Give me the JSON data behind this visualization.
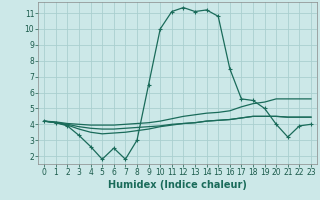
{
  "xlabel": "Humidex (Indice chaleur)",
  "background_color": "#cce8e8",
  "grid_color": "#aacfcf",
  "line_color": "#1a6b5a",
  "xlim": [
    -0.5,
    23.5
  ],
  "ylim": [
    1.5,
    11.7
  ],
  "xticks": [
    0,
    1,
    2,
    3,
    4,
    5,
    6,
    7,
    8,
    9,
    10,
    11,
    12,
    13,
    14,
    15,
    16,
    17,
    18,
    19,
    20,
    21,
    22,
    23
  ],
  "yticks": [
    2,
    3,
    4,
    5,
    6,
    7,
    8,
    9,
    10,
    11
  ],
  "series1_x": [
    0,
    1,
    2,
    3,
    4,
    5,
    6,
    7,
    8,
    9,
    10,
    11,
    12,
    13,
    14,
    15,
    16,
    17,
    18,
    19,
    20,
    21,
    22,
    23
  ],
  "series1_y": [
    4.2,
    4.1,
    3.9,
    3.3,
    2.6,
    1.8,
    2.5,
    1.8,
    3.0,
    6.5,
    10.0,
    11.1,
    11.35,
    11.1,
    11.2,
    10.8,
    7.5,
    5.6,
    5.5,
    5.0,
    4.0,
    3.2,
    3.9,
    4.0
  ],
  "series2_x": [
    0,
    1,
    2,
    3,
    4,
    5,
    6,
    7,
    8,
    9,
    10,
    11,
    12,
    13,
    14,
    15,
    16,
    17,
    18,
    19,
    20,
    21,
    22,
    23
  ],
  "series2_y": [
    4.2,
    4.15,
    4.05,
    4.0,
    3.95,
    3.95,
    3.95,
    4.0,
    4.05,
    4.1,
    4.2,
    4.35,
    4.5,
    4.6,
    4.7,
    4.75,
    4.85,
    5.1,
    5.3,
    5.4,
    5.6,
    5.6,
    5.6,
    5.6
  ],
  "series3_x": [
    0,
    1,
    2,
    3,
    4,
    5,
    6,
    7,
    8,
    9,
    10,
    11,
    12,
    13,
    14,
    15,
    16,
    17,
    18,
    19,
    20,
    21,
    22,
    23
  ],
  "series3_y": [
    4.2,
    4.1,
    4.0,
    3.85,
    3.75,
    3.7,
    3.7,
    3.75,
    3.8,
    3.85,
    3.9,
    4.0,
    4.05,
    4.1,
    4.2,
    4.25,
    4.3,
    4.4,
    4.5,
    4.5,
    4.5,
    4.45,
    4.45,
    4.45
  ],
  "series4_x": [
    0,
    1,
    2,
    3,
    4,
    5,
    6,
    7,
    8,
    9,
    10,
    11,
    12,
    13,
    14,
    15,
    16,
    17,
    18,
    19,
    20,
    21,
    22,
    23
  ],
  "series4_y": [
    4.2,
    4.1,
    3.95,
    3.7,
    3.5,
    3.4,
    3.45,
    3.5,
    3.6,
    3.7,
    3.85,
    3.95,
    4.05,
    4.1,
    4.2,
    4.25,
    4.3,
    4.4,
    4.5,
    4.5,
    4.5,
    4.45,
    4.45,
    4.45
  ],
  "marker": "+",
  "markersize": 3,
  "linewidth": 0.9,
  "tick_labelsize": 5.5,
  "xlabel_fontsize": 7
}
